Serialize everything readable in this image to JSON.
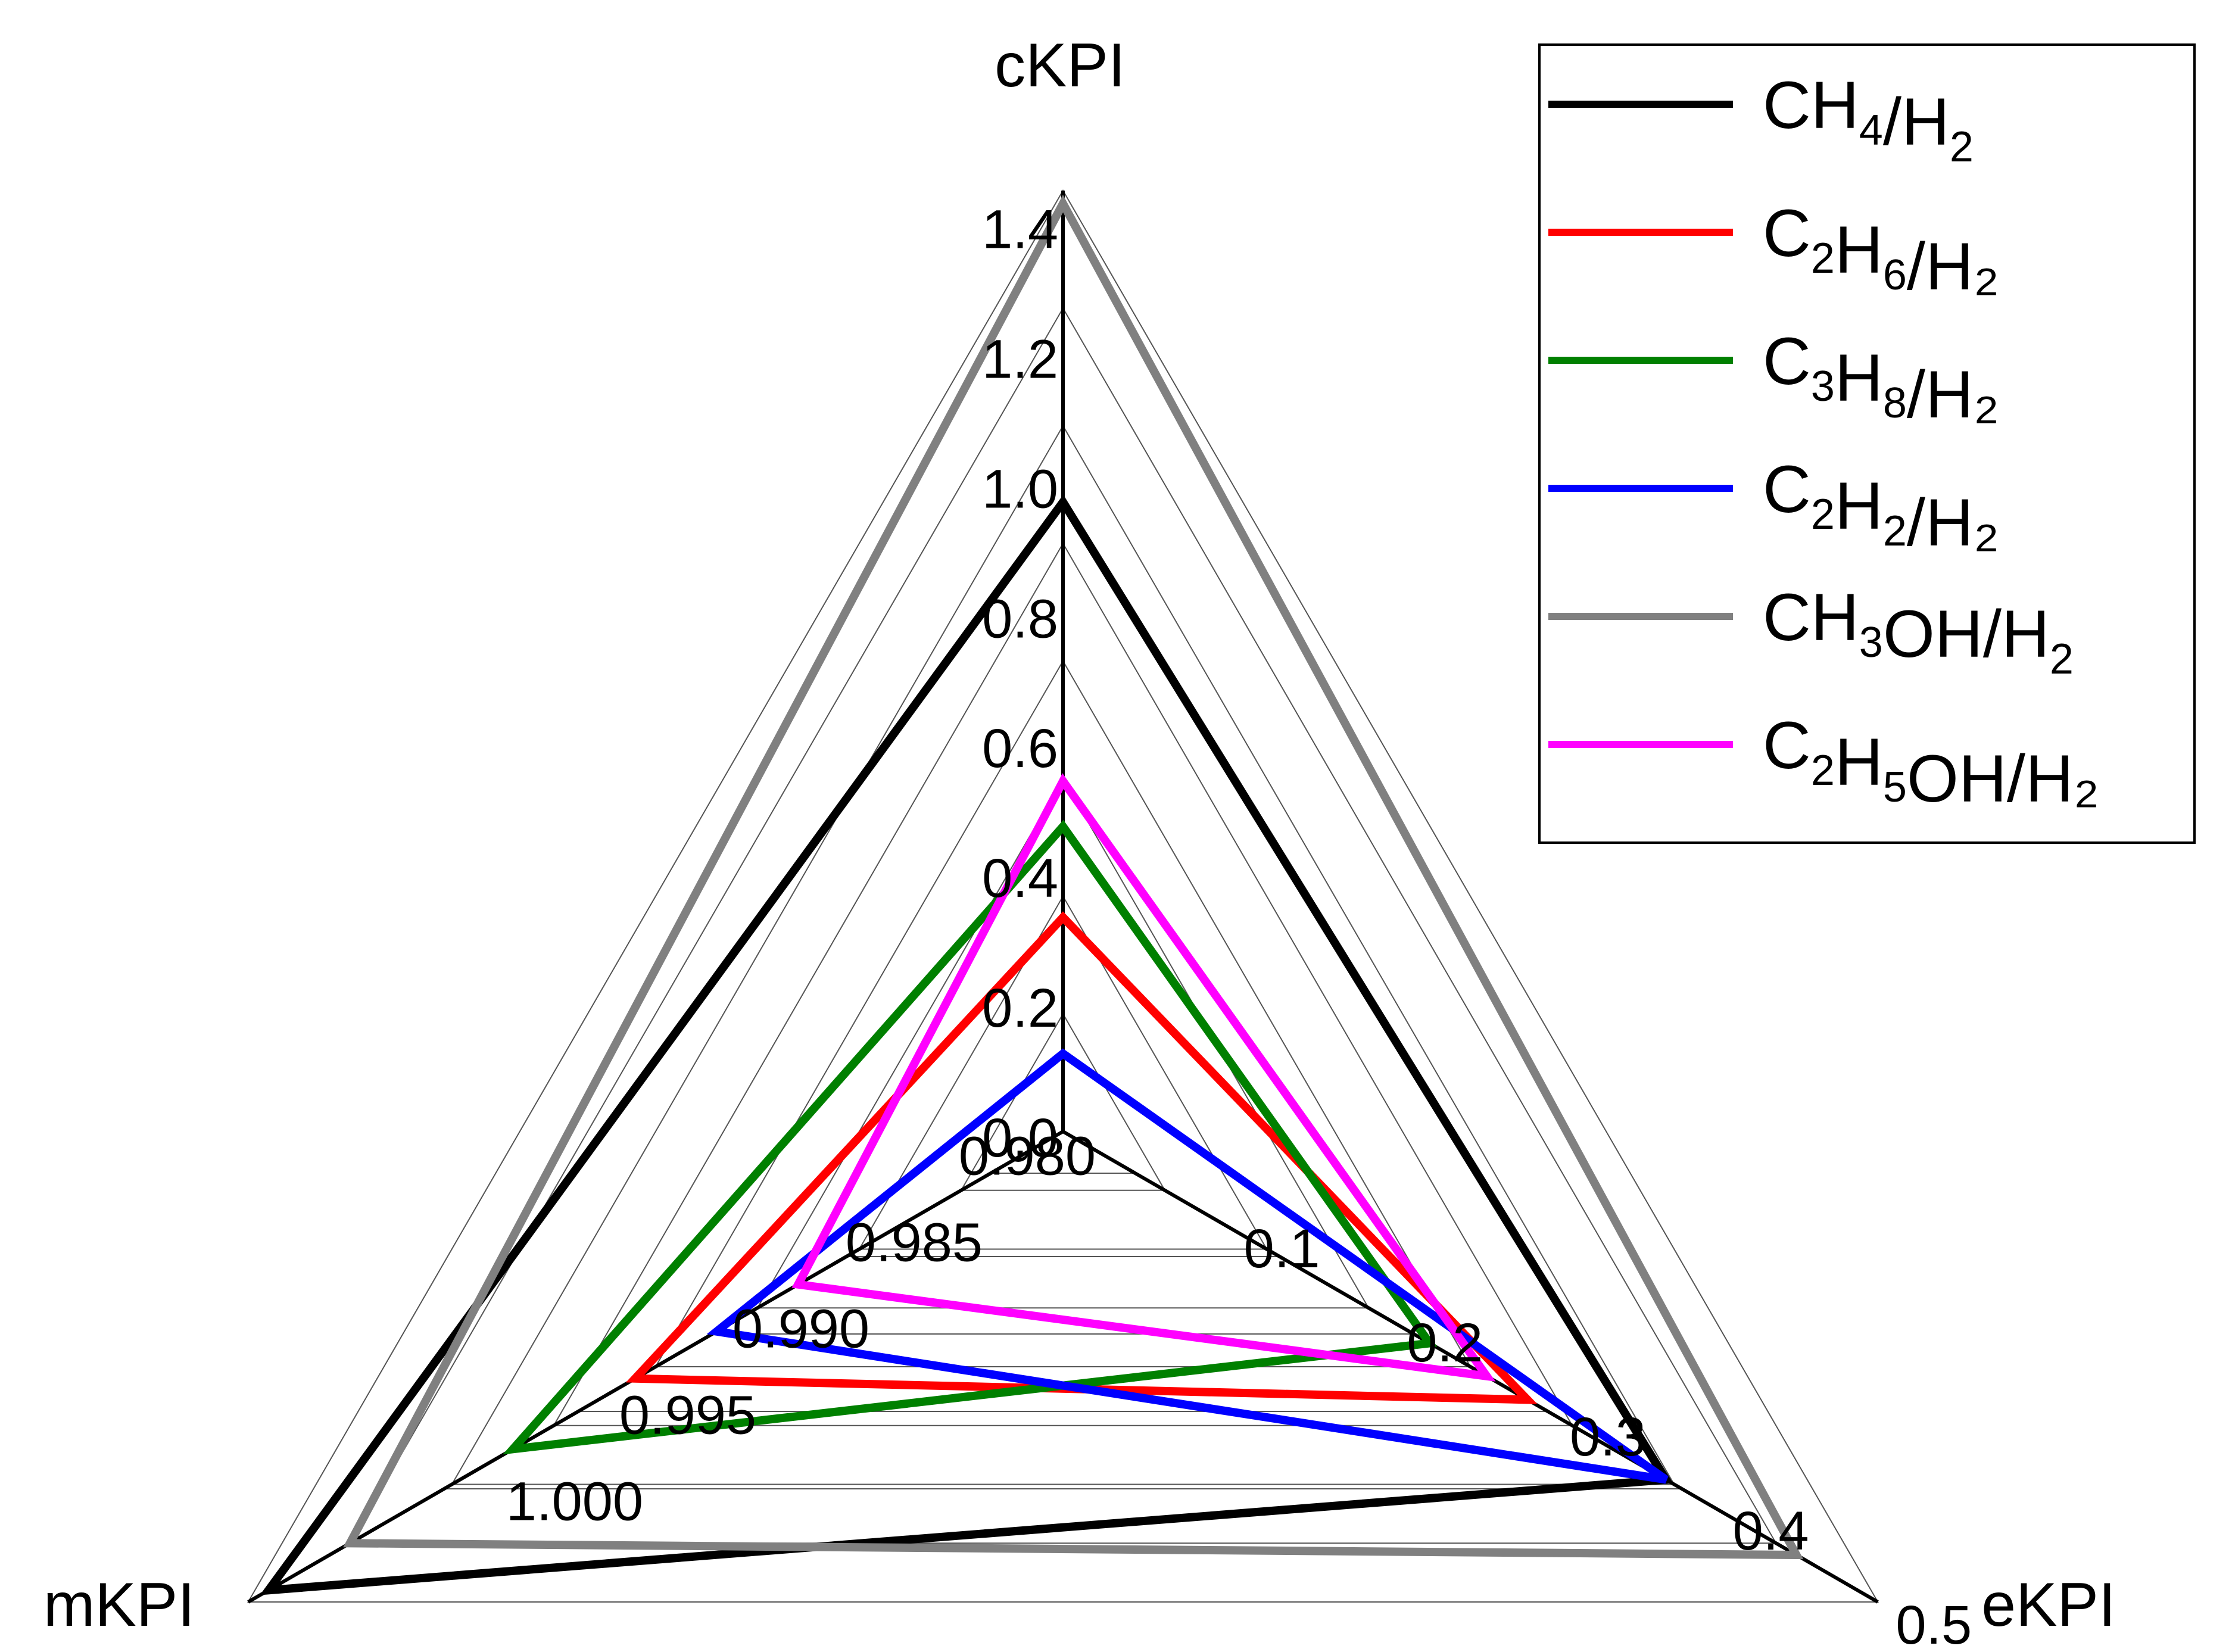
{
  "chart_data": {
    "type": "radar",
    "axes": [
      {
        "name": "cKPI",
        "ticks": [
          0.0,
          0.2,
          0.4,
          0.6,
          0.8,
          1.0,
          1.2,
          1.4
        ],
        "tick_labels": [
          "0.0",
          "0.2",
          "0.4",
          "0.6",
          "0.8",
          "1.0",
          "1.2",
          "1.4"
        ],
        "range": [
          0.0,
          1.45
        ]
      },
      {
        "name": "eKPI",
        "ticks": [
          0.1,
          0.2,
          0.3,
          0.4,
          0.5
        ],
        "tick_labels": [
          "0.1",
          "0.2",
          "0.3",
          "0.4",
          "0.5"
        ],
        "range": [
          0.0,
          0.5
        ]
      },
      {
        "name": "mKPI",
        "ticks": [
          0.98,
          0.985,
          0.99,
          0.995,
          1.0
        ],
        "tick_labels": [
          "0.980",
          "0.985",
          "0.990",
          "0.995",
          "1.000"
        ],
        "range": [
          0.98,
          1.0
        ]
      }
    ],
    "series": [
      {
        "name": "CH₄/H₂",
        "base": "CH",
        "sub1": "4",
        "mid": "/H",
        "sub2": "2",
        "tail": "",
        "color": "#000000",
        "values": [
          0.97,
          0.37,
          0.9995
        ]
      },
      {
        "name": "C₂H₆/H₂",
        "base": "C",
        "sub1": "2",
        "mid": "H",
        "sub2": "6",
        "tail": "/H₂",
        "color": "#ff0000",
        "values": [
          0.33,
          0.285,
          0.9905
        ]
      },
      {
        "name": "C₃H₈/H₂",
        "base": "C",
        "sub1": "3",
        "mid": "H",
        "sub2": "8",
        "tail": "/H₂",
        "color": "#008000",
        "values": [
          0.47,
          0.225,
          0.9935
        ]
      },
      {
        "name": "C₂H₂/H₂",
        "base": "C",
        "sub1": "2",
        "mid": "H",
        "sub2": "2",
        "tail": "/H₂",
        "color": "#0000ff",
        "values": [
          0.12,
          0.37,
          0.9885
        ]
      },
      {
        "name": "CH₃OH/H₂",
        "base": "CH",
        "sub1": "3",
        "mid": "OH/H",
        "sub2": "2",
        "tail": "",
        "color": "#808080",
        "values": [
          1.43,
          0.45,
          0.9975
        ]
      },
      {
        "name": "C₂H₅OH/H₂",
        "base": "C",
        "sub1": "2",
        "mid": "H",
        "sub2": "5",
        "tail": "OH/H₂",
        "color": "#ff00ff",
        "values": [
          0.54,
          0.26,
          0.9865
        ]
      }
    ],
    "legend_position": "top-right",
    "grid": true
  }
}
